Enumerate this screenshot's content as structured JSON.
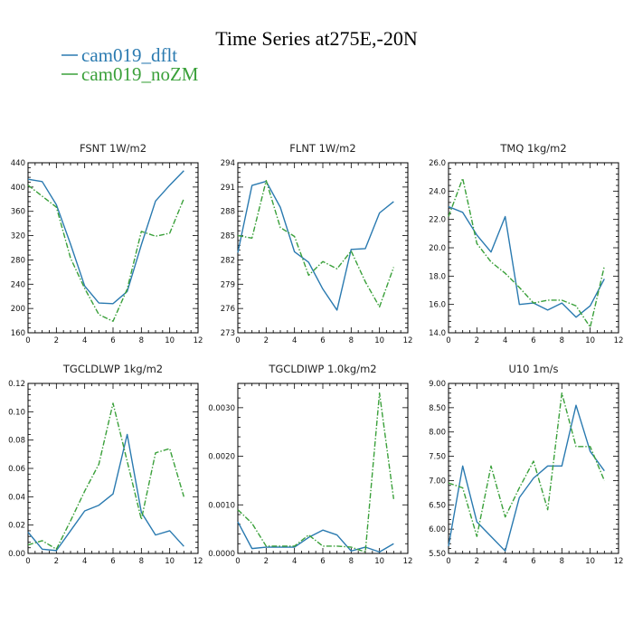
{
  "figure": {
    "title": "Time Series at275E,-20N",
    "colors": {
      "dflt": "#2a7ab0",
      "noZM": "#3aa03a"
    },
    "legend": [
      {
        "name": "cam019_dflt",
        "color": "#2a7ab0",
        "dashed": false
      },
      {
        "name": "cam019_noZM",
        "color": "#3aa03a",
        "dashed": true
      }
    ]
  },
  "chart_data": [
    {
      "type": "line",
      "title": "FSNT   1W/m2",
      "xlim": [
        0,
        12
      ],
      "x_ticks": [
        0,
        2,
        4,
        6,
        8,
        10,
        12
      ],
      "ylim": [
        160,
        440
      ],
      "y_ticks": [
        160,
        200,
        240,
        280,
        320,
        360,
        400,
        440
      ],
      "y_tick_labels": [
        "160",
        "200",
        "240",
        "280",
        "320",
        "360",
        "400",
        "440"
      ],
      "x": [
        0,
        1,
        2,
        3,
        4,
        5,
        6,
        7,
        8,
        9,
        10,
        11
      ],
      "series": [
        {
          "name": "cam019_dflt",
          "values": [
            413,
            409,
            371,
            306,
            237,
            209,
            208,
            228,
            305,
            377,
            403,
            427
          ]
        },
        {
          "name": "cam019_noZM",
          "values": [
            403,
            385,
            367,
            283,
            233,
            190,
            179,
            232,
            327,
            319,
            324,
            381
          ]
        }
      ]
    },
    {
      "type": "line",
      "title": "FLNT   1W/m2",
      "xlim": [
        0,
        12
      ],
      "x_ticks": [
        0,
        2,
        4,
        6,
        8,
        10,
        12
      ],
      "ylim": [
        273,
        294
      ],
      "y_ticks": [
        273,
        276,
        279,
        282,
        285,
        288,
        291,
        294
      ],
      "y_tick_labels": [
        "273",
        "276",
        "279",
        "282",
        "285",
        "288",
        "291",
        "294"
      ],
      "x": [
        0,
        1,
        2,
        3,
        4,
        5,
        6,
        7,
        8,
        9,
        10,
        11
      ],
      "series": [
        {
          "name": "cam019_dflt",
          "values": [
            282.9,
            291.2,
            291.7,
            288.5,
            283.0,
            281.7,
            278.4,
            275.8,
            283.3,
            283.4,
            287.8,
            289.2
          ]
        },
        {
          "name": "cam019_noZM",
          "values": [
            285.0,
            284.7,
            291.8,
            286.0,
            284.9,
            280.1,
            281.8,
            280.9,
            283.1,
            279.3,
            276.2,
            281.1
          ]
        }
      ]
    },
    {
      "type": "line",
      "title": "TMQ   1kg/m2",
      "xlim": [
        0,
        12
      ],
      "x_ticks": [
        0,
        2,
        4,
        6,
        8,
        10,
        12
      ],
      "ylim": [
        14,
        26
      ],
      "y_ticks": [
        14,
        16,
        18,
        20,
        22,
        24,
        26
      ],
      "y_tick_labels": [
        "14.0",
        "16.0",
        "18.0",
        "20.0",
        "22.0",
        "24.0",
        "26.0"
      ],
      "x": [
        0,
        1,
        2,
        3,
        4,
        5,
        6,
        7,
        8,
        9,
        10,
        11
      ],
      "series": [
        {
          "name": "cam019_dflt",
          "values": [
            22.9,
            22.5,
            20.9,
            19.7,
            22.2,
            16.0,
            16.1,
            15.6,
            16.1,
            15.1,
            15.9,
            17.8
          ]
        },
        {
          "name": "cam019_noZM",
          "values": [
            22.2,
            24.9,
            20.3,
            19.0,
            18.2,
            17.2,
            16.1,
            16.3,
            16.3,
            15.9,
            14.4,
            18.7
          ]
        }
      ]
    },
    {
      "type": "line",
      "title": "TGCLDLWP   1kg/m2",
      "xlim": [
        0,
        12
      ],
      "x_ticks": [
        0,
        2,
        4,
        6,
        8,
        10,
        12
      ],
      "ylim": [
        0,
        0.12
      ],
      "y_ticks": [
        0,
        0.02,
        0.04,
        0.06,
        0.08,
        0.1,
        0.12
      ],
      "y_tick_labels": [
        "0.00",
        "0.02",
        "0.04",
        "0.06",
        "0.08",
        "0.10",
        "0.12"
      ],
      "x": [
        0,
        1,
        2,
        3,
        4,
        5,
        6,
        7,
        8,
        9,
        10,
        11
      ],
      "series": [
        {
          "name": "cam019_dflt",
          "values": [
            0.015,
            0.003,
            0.002,
            0.016,
            0.03,
            0.034,
            0.042,
            0.084,
            0.029,
            0.013,
            0.016,
            0.005
          ]
        },
        {
          "name": "cam019_noZM",
          "values": [
            0.006,
            0.009,
            0.003,
            0.023,
            0.044,
            0.063,
            0.106,
            0.065,
            0.024,
            0.071,
            0.074,
            0.04
          ]
        }
      ]
    },
    {
      "type": "line",
      "title": "TGCLDIWP   1.0kg/m2",
      "xlim": [
        0,
        12
      ],
      "x_ticks": [
        0,
        2,
        4,
        6,
        8,
        10,
        12
      ],
      "ylim": [
        0,
        0.0035
      ],
      "y_ticks": [
        0,
        0.001,
        0.002,
        0.003
      ],
      "y_tick_labels": [
        "0.0000",
        "0.0010",
        "0.0020",
        "0.0030"
      ],
      "x": [
        0,
        1,
        2,
        3,
        4,
        5,
        6,
        7,
        8,
        9,
        10,
        11
      ],
      "series": [
        {
          "name": "cam019_dflt",
          "values": [
            0.00065,
            0.0001,
            0.00013,
            0.00013,
            0.00013,
            0.00033,
            0.00048,
            0.00038,
            5e-05,
            0.00013,
            3e-05,
            0.0002
          ]
        },
        {
          "name": "cam019_noZM",
          "values": [
            0.0009,
            0.00062,
            0.00015,
            0.00015,
            0.00015,
            0.00038,
            0.00015,
            0.00015,
            0.00013,
            3e-05,
            0.0033,
            0.00112
          ]
        }
      ]
    },
    {
      "type": "line",
      "title": "U10   1m/s",
      "xlim": [
        0,
        12
      ],
      "x_ticks": [
        0,
        2,
        4,
        6,
        8,
        10,
        12
      ],
      "ylim": [
        5.5,
        9.0
      ],
      "y_ticks": [
        5.5,
        6.0,
        6.5,
        7.0,
        7.5,
        8.0,
        8.5,
        9.0
      ],
      "y_tick_labels": [
        "5.50",
        "6.00",
        "6.50",
        "7.00",
        "7.50",
        "8.00",
        "8.50",
        "9.00"
      ],
      "x": [
        0,
        1,
        2,
        3,
        4,
        5,
        6,
        7,
        8,
        9,
        10,
        11
      ],
      "series": [
        {
          "name": "cam019_dflt",
          "values": [
            5.65,
            7.3,
            6.15,
            5.85,
            5.55,
            6.65,
            7.05,
            7.3,
            7.3,
            8.55,
            7.6,
            7.2
          ]
        },
        {
          "name": "cam019_noZM",
          "values": [
            6.95,
            6.85,
            5.85,
            7.3,
            6.25,
            6.85,
            7.4,
            6.4,
            8.8,
            7.7,
            7.7,
            7.0
          ]
        }
      ]
    }
  ]
}
